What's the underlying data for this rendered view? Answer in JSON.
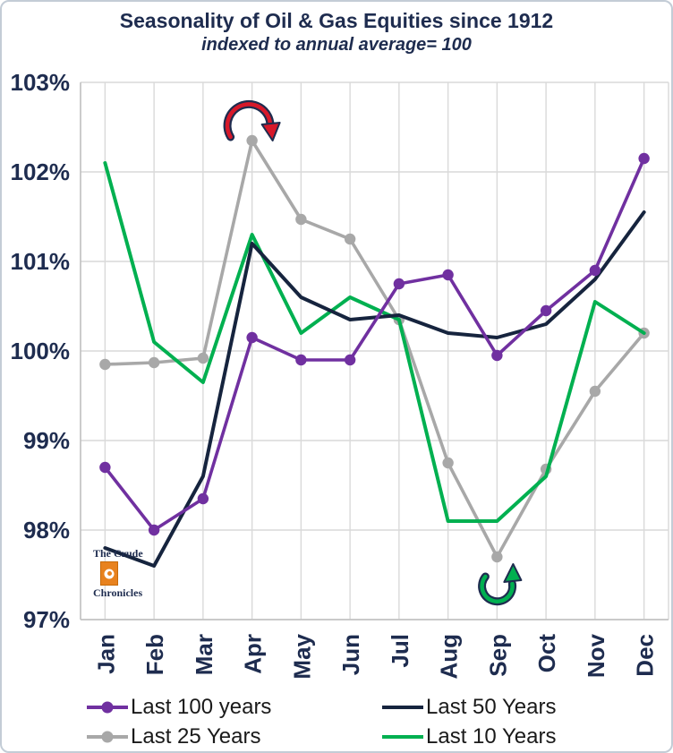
{
  "header": {
    "title": "Seasonality of Oil & Gas Equities since 1912",
    "subtitle": "indexed to annual average= 100"
  },
  "logo": {
    "line1": "The Crude",
    "line2": "Chronicles"
  },
  "colors": {
    "navy": "#1e2c4f",
    "gridline": "#d9d9d9",
    "axis": "#bfbfbf",
    "logo_orange": "#e8821e"
  },
  "chart_data": {
    "type": "line",
    "title": "Seasonality of Oil & Gas Equities since 1912",
    "subtitle": "indexed to annual average= 100",
    "categories": [
      "Jan",
      "Feb",
      "Mar",
      "Apr",
      "May",
      "Jun",
      "Jul",
      "Aug",
      "Sep",
      "Oct",
      "Nov",
      "Dec"
    ],
    "ylim": [
      97,
      103
    ],
    "grid": true,
    "legend_position": "bottom",
    "yticks": [
      {
        "label": "103%",
        "value": 103
      },
      {
        "label": "102%",
        "value": 102
      },
      {
        "label": "101%",
        "value": 101
      },
      {
        "label": "100%",
        "value": 100
      },
      {
        "label": "99%",
        "value": 99
      },
      {
        "label": "98%",
        "value": 98
      },
      {
        "label": "97%",
        "value": 97
      }
    ],
    "series": [
      {
        "name": "Last 100 years",
        "color": "#7030A0",
        "marker": true,
        "width": 3.6,
        "values": [
          98.7,
          98.0,
          98.35,
          100.15,
          99.9,
          99.9,
          100.75,
          100.85,
          99.95,
          100.45,
          100.9,
          102.15
        ]
      },
      {
        "name": "Last 50 Years",
        "color": "#16243e",
        "marker": false,
        "width": 4,
        "values": [
          97.8,
          97.6,
          98.6,
          101.2,
          100.6,
          100.35,
          100.4,
          100.2,
          100.15,
          100.3,
          100.8,
          101.55
        ]
      },
      {
        "name": "Last 25 Years",
        "color": "#a8a8a8",
        "marker": true,
        "width": 3.6,
        "values": [
          99.85,
          99.87,
          99.92,
          102.35,
          101.47,
          101.25,
          100.35,
          98.75,
          97.7,
          98.68,
          99.55,
          100.2
        ]
      },
      {
        "name": "Last 10 Years",
        "color": "#00B050",
        "marker": false,
        "width": 4,
        "values": [
          102.1,
          100.1,
          99.65,
          101.3,
          100.2,
          100.6,
          100.35,
          98.1,
          98.1,
          98.6,
          100.55,
          100.2
        ]
      }
    ],
    "draw_order": [
      2,
      3,
      1,
      0
    ],
    "annotations": [
      {
        "name": "peak-reversal-arrow",
        "shape": "arc-over",
        "month_index": 3,
        "value": 102.35,
        "offset": -22,
        "color": "#d7182a"
      },
      {
        "name": "trough-reversal-arrow",
        "shape": "arc-under",
        "month_index": 8,
        "value": 97.7,
        "offset": 38,
        "color": "#00B050"
      }
    ]
  }
}
